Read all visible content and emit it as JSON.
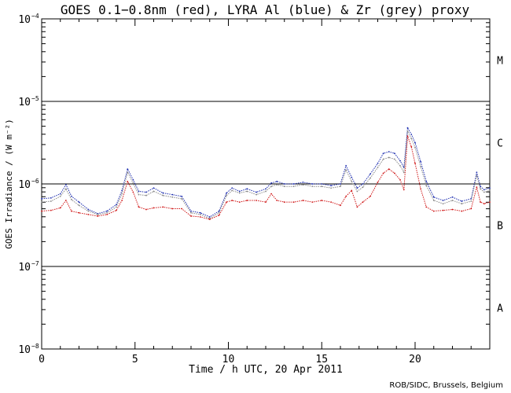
{
  "chart_data": {
    "type": "line",
    "title": "GOES 0.1−0.8nm (red), LYRA Al (blue) & Zr (grey) proxy",
    "xlabel": "Time / h UTC, 20 Apr 2011",
    "ylabel": "GOES Irradiance / (W m⁻²)",
    "xlim": [
      0,
      24
    ],
    "ylim_log10": [
      -8,
      -4
    ],
    "yscale": "log",
    "x_ticks": [
      {
        "value": 0,
        "label": "0"
      },
      {
        "value": 5,
        "label": "5"
      },
      {
        "value": 10,
        "label": "10"
      },
      {
        "value": 15,
        "label": "15"
      },
      {
        "value": 20,
        "label": "20"
      }
    ],
    "y_ticks": [
      {
        "exp": -8,
        "base": "10",
        "power": "−8"
      },
      {
        "exp": -7,
        "base": "10",
        "power": "−7"
      },
      {
        "exp": -6,
        "base": "10",
        "power": "−6"
      },
      {
        "exp": -5,
        "base": "10",
        "power": "−5"
      },
      {
        "exp": -4,
        "base": "10",
        "power": "−4"
      }
    ],
    "reference_lines_log10": [
      -7,
      -6,
      -5
    ],
    "class_labels": [
      {
        "label": "A",
        "log10_center": -7.5
      },
      {
        "label": "B",
        "log10_center": -6.5
      },
      {
        "label": "C",
        "log10_center": -5.5
      },
      {
        "label": "M",
        "log10_center": -4.5
      }
    ],
    "series": [
      {
        "name": "LYRA Al proxy (blue)",
        "color": "#1f2fb0",
        "x": [
          0,
          0.5,
          1.0,
          1.3,
          1.6,
          2.0,
          2.5,
          3.0,
          3.5,
          4.0,
          4.3,
          4.6,
          4.9,
          5.2,
          5.6,
          6.0,
          6.5,
          7.0,
          7.5,
          8.0,
          8.5,
          9.0,
          9.5,
          9.9,
          10.2,
          10.6,
          11.0,
          11.5,
          12.0,
          12.3,
          12.6,
          13.0,
          13.5,
          14.0,
          14.5,
          15.0,
          15.5,
          16.0,
          16.3,
          16.6,
          16.9,
          17.2,
          17.6,
          18.0,
          18.3,
          18.6,
          18.9,
          19.2,
          19.4,
          19.6,
          19.8,
          20.0,
          20.3,
          20.6,
          21.0,
          21.5,
          22.0,
          22.5,
          23.0,
          23.3,
          23.5,
          23.7,
          24.0
        ],
        "y": [
          -6.18,
          -6.17,
          -6.12,
          -6.01,
          -6.15,
          -6.22,
          -6.31,
          -6.36,
          -6.33,
          -6.25,
          -6.08,
          -5.82,
          -5.95,
          -6.09,
          -6.1,
          -6.05,
          -6.11,
          -6.13,
          -6.15,
          -6.33,
          -6.35,
          -6.4,
          -6.33,
          -6.11,
          -6.05,
          -6.09,
          -6.06,
          -6.1,
          -6.06,
          -5.99,
          -5.97,
          -6.0,
          -6.0,
          -5.98,
          -6.0,
          -6.0,
          -6.02,
          -6.0,
          -5.78,
          -5.92,
          -6.05,
          -6.0,
          -5.88,
          -5.75,
          -5.63,
          -5.61,
          -5.63,
          -5.72,
          -5.8,
          -5.32,
          -5.4,
          -5.5,
          -5.73,
          -5.97,
          -6.16,
          -6.2,
          -6.16,
          -6.21,
          -6.18,
          -5.86,
          -6.03,
          -6.07,
          -6.05
        ]
      },
      {
        "name": "LYRA Zr proxy (grey)",
        "color": "#8a8a8a",
        "x": [
          0,
          0.5,
          1.0,
          1.3,
          1.6,
          2.0,
          2.5,
          3.0,
          3.5,
          4.0,
          4.3,
          4.6,
          4.9,
          5.2,
          5.6,
          6.0,
          6.5,
          7.0,
          7.5,
          8.0,
          8.5,
          9.0,
          9.5,
          9.9,
          10.2,
          10.6,
          11.0,
          11.5,
          12.0,
          12.3,
          12.6,
          13.0,
          13.5,
          14.0,
          14.5,
          15.0,
          15.5,
          16.0,
          16.3,
          16.6,
          16.9,
          17.2,
          17.6,
          18.0,
          18.3,
          18.6,
          18.9,
          19.2,
          19.4,
          19.6,
          19.8,
          20.0,
          20.3,
          20.6,
          21.0,
          21.5,
          22.0,
          22.5,
          23.0,
          23.3,
          23.5,
          23.7,
          24.0
        ],
        "y": [
          -6.22,
          -6.21,
          -6.15,
          -6.06,
          -6.19,
          -6.26,
          -6.33,
          -6.37,
          -6.35,
          -6.28,
          -6.12,
          -5.86,
          -5.99,
          -6.13,
          -6.14,
          -6.09,
          -6.14,
          -6.16,
          -6.18,
          -6.35,
          -6.37,
          -6.42,
          -6.35,
          -6.14,
          -6.08,
          -6.11,
          -6.09,
          -6.13,
          -6.09,
          -6.03,
          -6.01,
          -6.03,
          -6.03,
          -6.01,
          -6.03,
          -6.03,
          -6.05,
          -6.03,
          -5.83,
          -5.97,
          -6.09,
          -6.04,
          -5.93,
          -5.8,
          -5.7,
          -5.68,
          -5.7,
          -5.78,
          -5.86,
          -5.36,
          -5.45,
          -5.56,
          -5.79,
          -6.02,
          -6.2,
          -6.24,
          -6.2,
          -6.24,
          -6.21,
          -5.9,
          -6.06,
          -6.1,
          -6.08
        ]
      },
      {
        "name": "GOES 0.1-0.8nm (red)",
        "color": "#d01818",
        "x": [
          0,
          0.5,
          1.0,
          1.3,
          1.6,
          2.0,
          2.5,
          3.0,
          3.5,
          4.0,
          4.3,
          4.6,
          4.9,
          5.2,
          5.6,
          6.0,
          6.5,
          7.0,
          7.5,
          8.0,
          8.5,
          9.0,
          9.5,
          9.9,
          10.2,
          10.6,
          11.0,
          11.5,
          12.0,
          12.3,
          12.6,
          13.0,
          13.5,
          14.0,
          14.5,
          15.0,
          15.5,
          16.0,
          16.3,
          16.6,
          16.9,
          17.2,
          17.6,
          18.0,
          18.3,
          18.6,
          18.9,
          19.2,
          19.4,
          19.6,
          19.8,
          20.0,
          20.3,
          20.6,
          21.0,
          21.5,
          22.0,
          22.5,
          23.0,
          23.3,
          23.5,
          23.7,
          24.0
        ],
        "y": [
          -6.33,
          -6.32,
          -6.29,
          -6.2,
          -6.33,
          -6.35,
          -6.37,
          -6.39,
          -6.37,
          -6.32,
          -6.2,
          -5.97,
          -6.1,
          -6.28,
          -6.31,
          -6.29,
          -6.28,
          -6.3,
          -6.3,
          -6.39,
          -6.4,
          -6.43,
          -6.38,
          -6.22,
          -6.2,
          -6.22,
          -6.2,
          -6.2,
          -6.22,
          -6.12,
          -6.2,
          -6.22,
          -6.22,
          -6.2,
          -6.22,
          -6.2,
          -6.22,
          -6.26,
          -6.15,
          -6.08,
          -6.28,
          -6.22,
          -6.15,
          -5.98,
          -5.87,
          -5.82,
          -5.87,
          -5.95,
          -6.07,
          -5.42,
          -5.55,
          -5.75,
          -6.06,
          -6.28,
          -6.33,
          -6.32,
          -6.31,
          -6.33,
          -6.3,
          -6.04,
          -6.22,
          -6.24,
          -6.22
        ]
      }
    ]
  },
  "credit": "ROB/SIDC, Brussels, Belgium"
}
